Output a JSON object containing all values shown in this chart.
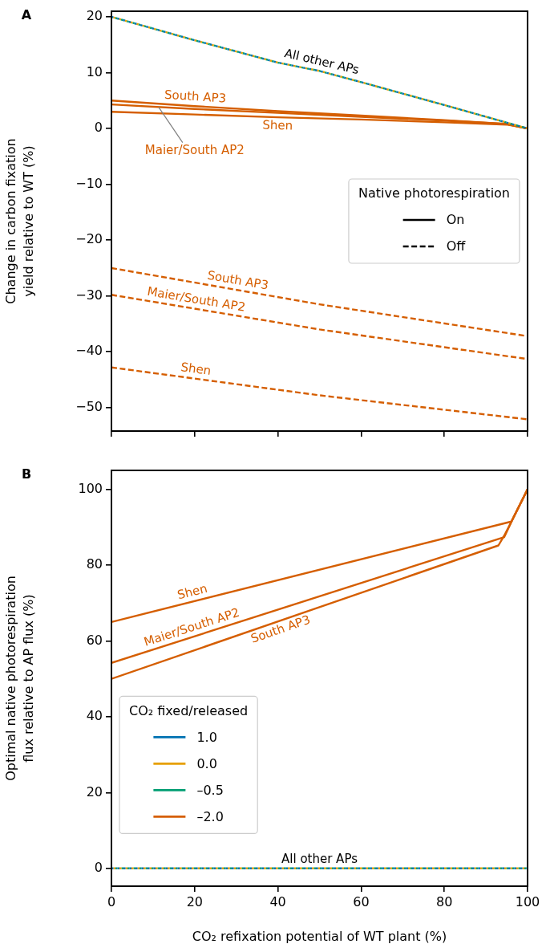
{
  "chart_data": [
    {
      "type": "line",
      "title": "A",
      "ylabel": "Change in carbon fixation\nyield relative to WT (%)",
      "xlim": [
        0,
        100
      ],
      "xticks": [
        0,
        20,
        40,
        60,
        80,
        100
      ],
      "ylim": [
        -54.2,
        21
      ],
      "yticks": [
        -50,
        -40,
        -30,
        -20,
        -10,
        0,
        10,
        20
      ],
      "tick_labels": "y",
      "grid": false,
      "legend": "right",
      "legend_title": "Native photorespiration",
      "marker": "none",
      "series": [
        {
          "color": "#0072b2",
          "line_style": "dotted",
          "x": [
            0,
            20,
            40,
            50,
            60,
            80,
            100
          ],
          "values": [
            20,
            15.8,
            11.8,
            10.3,
            8.3,
            4.2,
            0
          ]
        },
        {
          "color": "#e69f00",
          "line_style": "dotted",
          "x": [
            0,
            20,
            40,
            50,
            60,
            80,
            100
          ],
          "values": [
            20,
            15.8,
            11.8,
            10.3,
            8.3,
            4.2,
            0
          ]
        },
        {
          "color": "#009e73",
          "line_style": "dotted",
          "x": [
            0,
            20,
            40,
            50,
            60,
            80,
            100
          ],
          "values": [
            20,
            15.8,
            11.8,
            10.3,
            8.3,
            4.2,
            0
          ]
        },
        {
          "color": "#d55e00",
          "line_style": "solid",
          "x": [
            0,
            20,
            40,
            60,
            80,
            95,
            100
          ],
          "values": [
            5.0,
            4.0,
            3.1,
            2.3,
            1.5,
            0.8,
            0
          ]
        },
        {
          "color": "#d55e00",
          "line_style": "solid",
          "x": [
            0,
            20,
            40,
            60,
            80,
            95,
            100
          ],
          "values": [
            4.3,
            3.5,
            2.8,
            2.1,
            1.4,
            0.8,
            0
          ]
        },
        {
          "color": "#d55e00",
          "line_style": "solid",
          "x": [
            0,
            20,
            40,
            60,
            80,
            95,
            100
          ],
          "values": [
            3.0,
            2.5,
            2.0,
            1.6,
            1.1,
            0.7,
            0
          ]
        },
        {
          "color": "#d55e00",
          "line_style": "dashed",
          "x": [
            0,
            50,
            100
          ],
          "values": [
            -25,
            -31.5,
            -37.2
          ]
        },
        {
          "color": "#d55e00",
          "line_style": "dashed",
          "x": [
            0,
            50,
            100
          ],
          "values": [
            -29.8,
            -36,
            -41.3
          ]
        },
        {
          "color": "#d55e00",
          "line_style": "dashed",
          "x": [
            0,
            50,
            100
          ],
          "values": [
            -42.8,
            -47.8,
            -52.1
          ]
        },
        {
          "name": "On",
          "color": "#000000",
          "line_style": "solid"
        },
        {
          "name": "Off",
          "color": "#000000",
          "line_style": "dashed"
        }
      ],
      "annotations": [
        {
          "text": "All other APs",
          "x": 50,
          "y": 10.3
        },
        {
          "text": "South AP3",
          "x": 20,
          "y": 4.0
        },
        {
          "text": "Shen",
          "x": 40,
          "y": 2.0
        },
        {
          "text": "Maier/South AP2",
          "x": 20,
          "y": 3.5
        },
        {
          "text": "South AP3",
          "x": 30,
          "y": -28.9
        },
        {
          "text": "Maier/South AP2",
          "x": 20,
          "y": -32.3
        },
        {
          "text": "Shen",
          "x": 20,
          "y": -44.8
        }
      ]
    },
    {
      "type": "line",
      "title": "B",
      "xlabel": "CO₂ refixation potential of WT plant (%)",
      "ylabel": "Optimal native photorespiration\nflux relative to AP flux (%)",
      "xlim": [
        0,
        100
      ],
      "xticks": [
        0,
        20,
        40,
        60,
        80,
        100
      ],
      "ylim": [
        -4.7,
        105
      ],
      "yticks": [
        0,
        20,
        40,
        60,
        80,
        100
      ],
      "grid": false,
      "legend": "lower left",
      "legend_title": "CO₂ fixed/released",
      "marker": "none",
      "series": [
        {
          "name": "1.0",
          "color": "#0072b2",
          "line_style": "dotted",
          "x": [
            0,
            100
          ],
          "values": [
            0,
            0
          ]
        },
        {
          "name": "0.0",
          "color": "#e69f00",
          "line_style": "dotted",
          "x": [
            0,
            100
          ],
          "values": [
            0,
            0
          ]
        },
        {
          "name": "–0.5",
          "color": "#009e73",
          "line_style": "dotted",
          "x": [
            0,
            100
          ],
          "values": [
            0,
            0
          ]
        },
        {
          "color": "#d55e00",
          "line_style": "solid",
          "x": [
            0,
            96.1,
            100
          ],
          "values": [
            65,
            91.5,
            100
          ]
        },
        {
          "color": "#d55e00",
          "line_style": "solid",
          "x": [
            0,
            94.4,
            96.5,
            100
          ],
          "values": [
            54.2,
            87.4,
            92.3,
            100
          ]
        },
        {
          "color": "#d55e00",
          "line_style": "solid",
          "x": [
            0,
            93,
            94.4,
            96.5,
            100
          ],
          "values": [
            50,
            85.2,
            87.8,
            92.3,
            100
          ]
        },
        {
          "name": "–2.0",
          "color": "#d55e00",
          "line_style": "solid"
        }
      ],
      "annotations": [
        {
          "text": "Shen",
          "x": 20,
          "y": 70.5
        },
        {
          "text": "Maier/South AP2",
          "x": 20,
          "y": 61.2
        },
        {
          "text": "South AP3",
          "x": 40,
          "y": 65.1
        },
        {
          "text": "All other APs",
          "x": 50,
          "y": 0
        }
      ]
    }
  ]
}
